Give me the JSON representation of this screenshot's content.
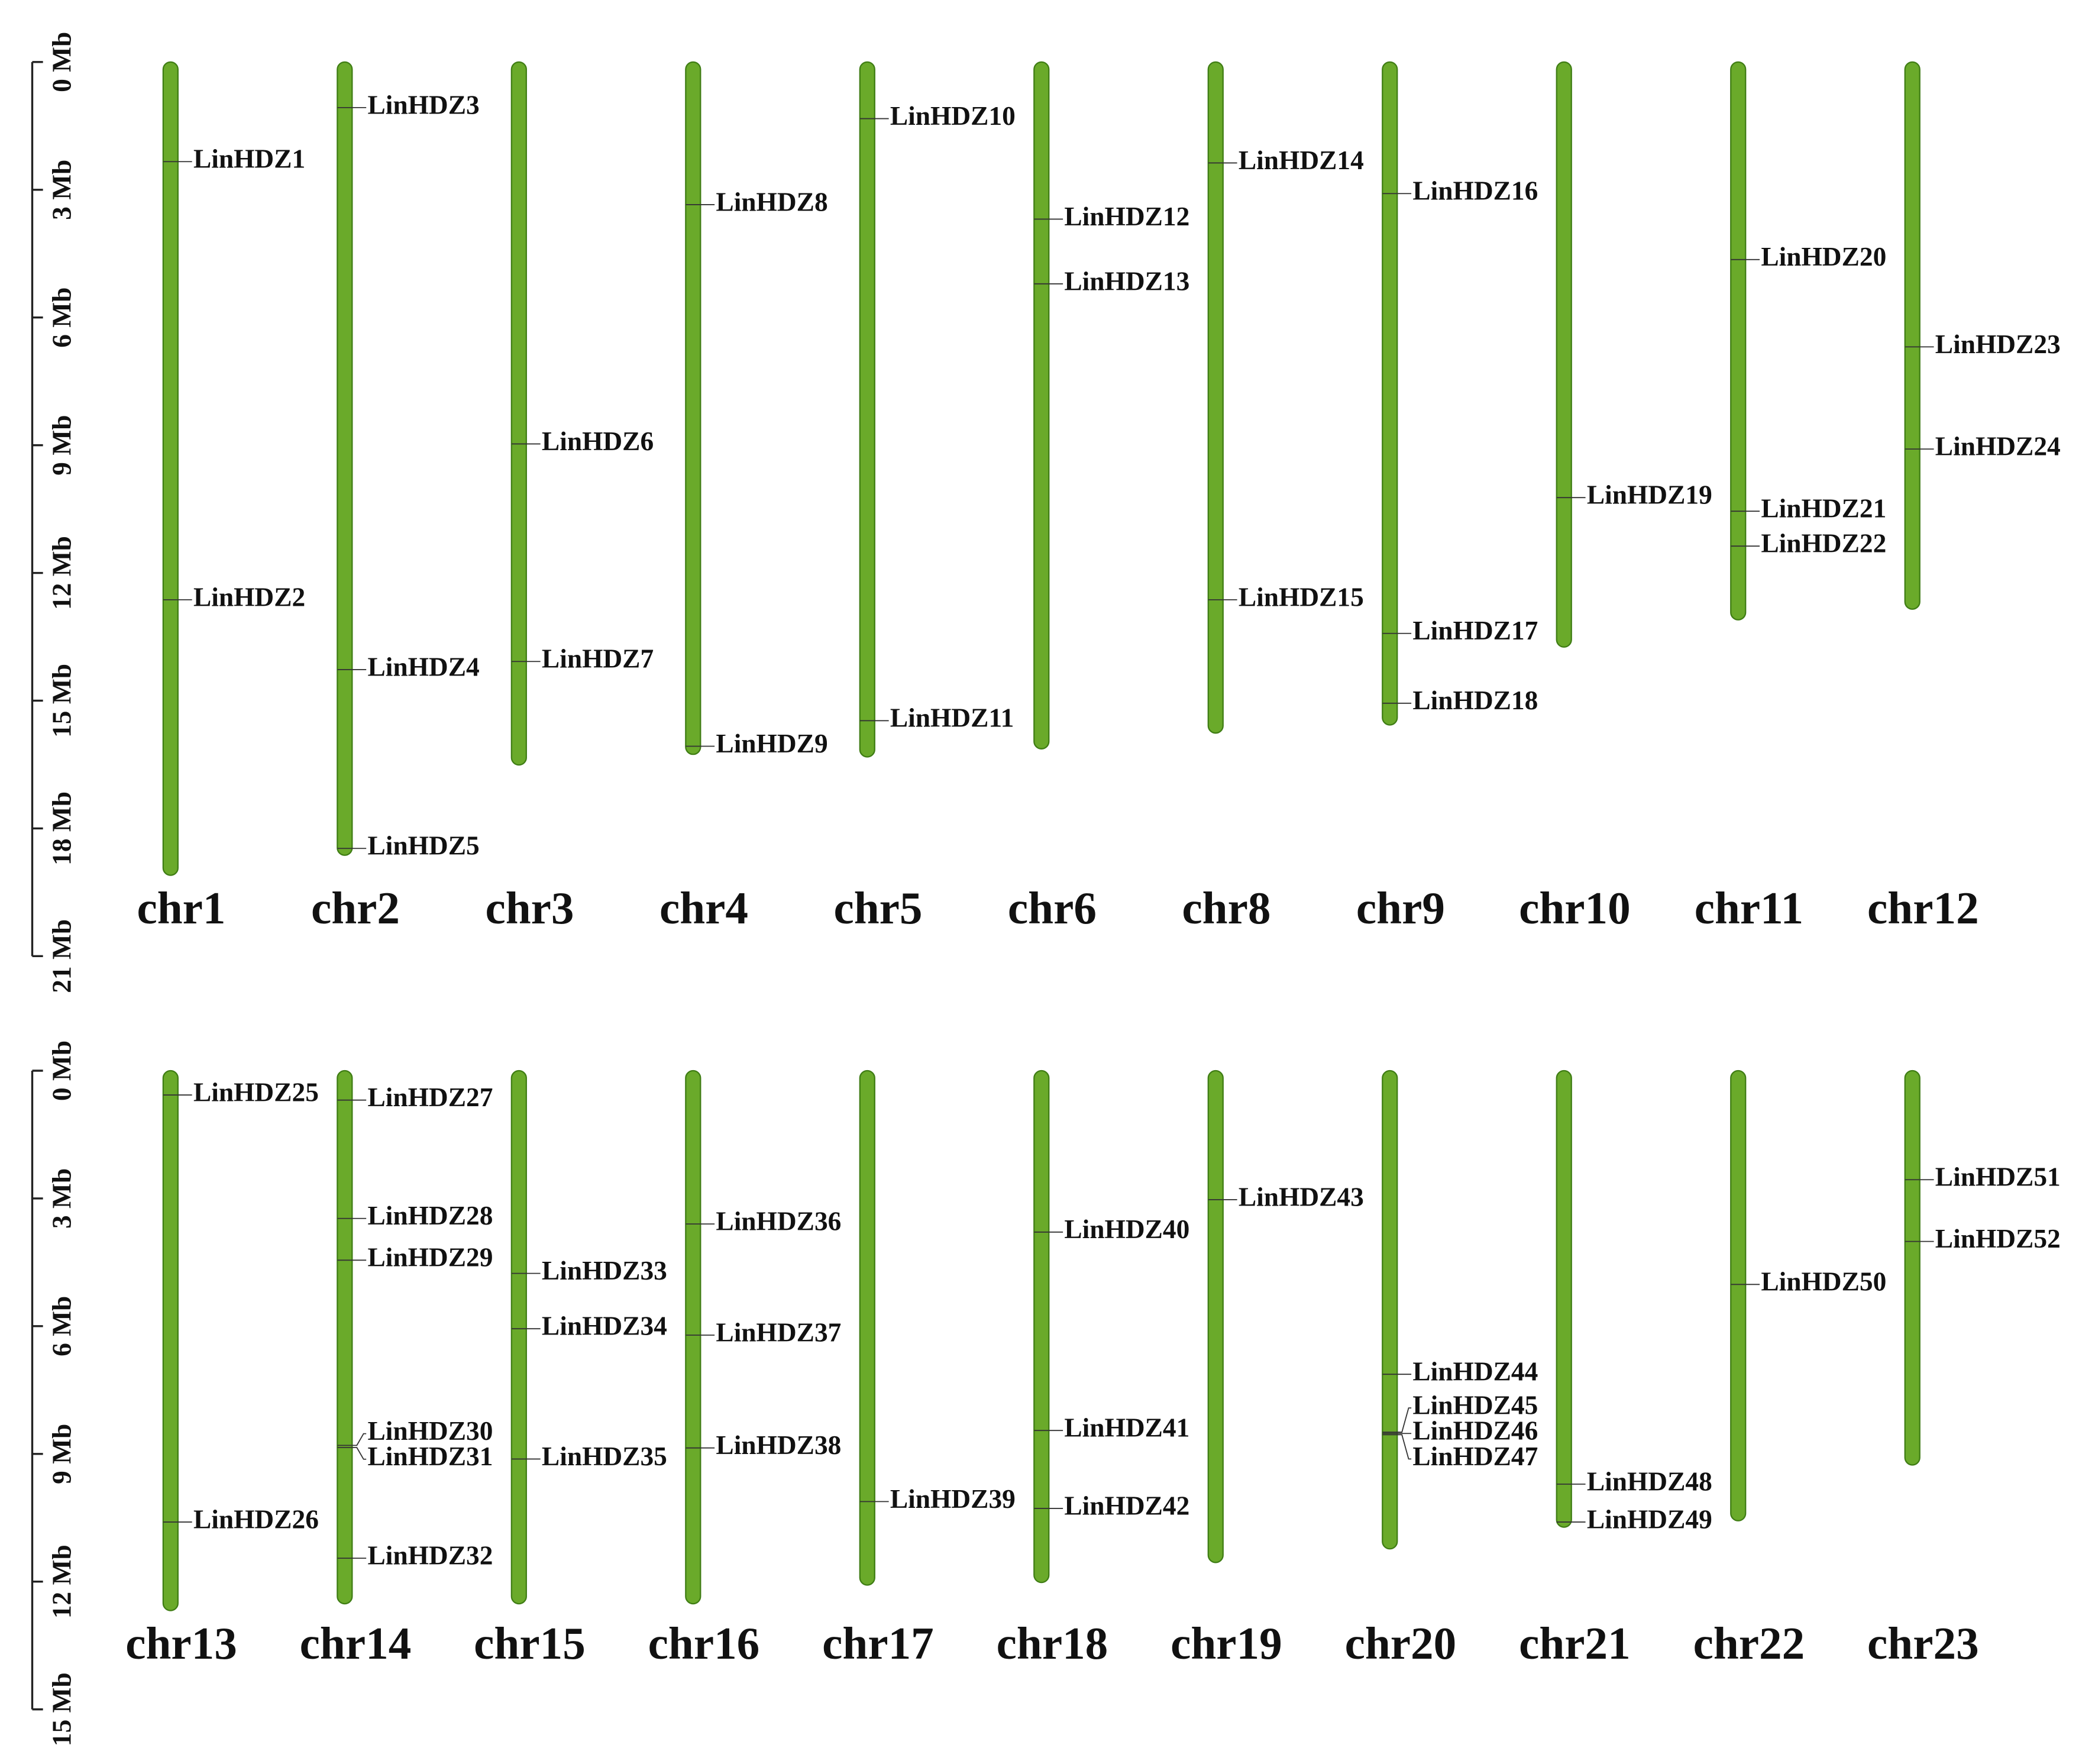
{
  "chart_data": [
    {
      "type": "ideogram",
      "color": "#6aaa2a",
      "ylim": [
        0,
        21
      ],
      "yticks": [
        {
          "value": 0,
          "label": "0 Mb"
        },
        {
          "value": 3,
          "label": "3 Mb"
        },
        {
          "value": 6,
          "label": "6 Mb"
        },
        {
          "value": 9,
          "label": "9 Mb"
        },
        {
          "value": 12,
          "label": "12 Mb"
        },
        {
          "value": 15,
          "label": "15 Mb"
        },
        {
          "value": 18,
          "label": "18 Mb"
        },
        {
          "value": 21,
          "label": "21 Mb"
        }
      ],
      "chromosomes": [
        {
          "name": "chr1",
          "length": 19.1,
          "genes": [
            {
              "name": "LinHDZ1",
              "position": 2.34
            },
            {
              "name": "LinHDZ2",
              "position": 12.63
            }
          ]
        },
        {
          "name": "chr2",
          "length": 18.63,
          "genes": [
            {
              "name": "LinHDZ3",
              "position": 1.07
            },
            {
              "name": "LinHDZ4",
              "position": 14.27
            },
            {
              "name": "LinHDZ5",
              "position": 18.47
            }
          ]
        },
        {
          "name": "chr3",
          "length": 16.51,
          "genes": [
            {
              "name": "LinHDZ6",
              "position": 8.97
            },
            {
              "name": "LinHDZ7",
              "position": 14.08
            }
          ]
        },
        {
          "name": "chr4",
          "length": 16.26,
          "genes": [
            {
              "name": "LinHDZ8",
              "position": 3.35
            },
            {
              "name": "LinHDZ9",
              "position": 16.07
            }
          ]
        },
        {
          "name": "chr5",
          "length": 16.32,
          "genes": [
            {
              "name": "LinHDZ10",
              "position": 1.33
            },
            {
              "name": "LinHDZ11",
              "position": 15.47
            }
          ]
        },
        {
          "name": "chr6",
          "length": 16.13,
          "genes": [
            {
              "name": "LinHDZ12",
              "position": 3.69
            },
            {
              "name": "LinHDZ13",
              "position": 5.21
            }
          ]
        },
        {
          "name": "chr8",
          "length": 15.76,
          "genes": [
            {
              "name": "LinHDZ14",
              "position": 2.37
            },
            {
              "name": "LinHDZ15",
              "position": 12.63
            }
          ]
        },
        {
          "name": "chr9",
          "length": 15.57,
          "genes": [
            {
              "name": "LinHDZ16",
              "position": 3.09
            },
            {
              "name": "LinHDZ17",
              "position": 13.42
            },
            {
              "name": "LinHDZ18",
              "position": 15.06
            }
          ]
        },
        {
          "name": "chr10",
          "length": 13.74,
          "genes": [
            {
              "name": "LinHDZ19",
              "position": 10.23
            }
          ]
        },
        {
          "name": "chr11",
          "length": 13.1,
          "genes": [
            {
              "name": "LinHDZ20",
              "position": 4.64
            },
            {
              "name": "LinHDZ21",
              "position": 10.55
            },
            {
              "name": "LinHDZ22",
              "position": 11.37
            }
          ]
        },
        {
          "name": "chr12",
          "length": 12.85,
          "genes": [
            {
              "name": "LinHDZ23",
              "position": 6.69
            },
            {
              "name": "LinHDZ24",
              "position": 9.09
            }
          ]
        }
      ]
    },
    {
      "type": "ideogram",
      "color": "#6aaa2a",
      "ylim": [
        0,
        15
      ],
      "yticks": [
        {
          "value": 0,
          "label": "0 Mb"
        },
        {
          "value": 3,
          "label": "3 Mb"
        },
        {
          "value": 6,
          "label": "6 Mb"
        },
        {
          "value": 9,
          "label": "9 Mb"
        },
        {
          "value": 12,
          "label": "12 Mb"
        },
        {
          "value": 15,
          "label": "15 Mb"
        }
      ],
      "chromosomes": [
        {
          "name": "chr13",
          "length": 12.68,
          "genes": [
            {
              "name": "LinHDZ25",
              "position": 0.57
            },
            {
              "name": "LinHDZ26",
              "position": 10.6
            }
          ]
        },
        {
          "name": "chr14",
          "length": 12.52,
          "genes": [
            {
              "name": "LinHDZ27",
              "position": 0.69
            },
            {
              "name": "LinHDZ28",
              "position": 3.47
            },
            {
              "name": "LinHDZ29",
              "position": 4.45
            },
            {
              "name": "LinHDZ30",
              "position": 8.8
            },
            {
              "name": "LinHDZ31",
              "position": 8.85
            },
            {
              "name": "LinHDZ32",
              "position": 11.45
            }
          ]
        },
        {
          "name": "chr15",
          "length": 12.52,
          "genes": [
            {
              "name": "LinHDZ33",
              "position": 4.76
            },
            {
              "name": "LinHDZ34",
              "position": 6.06
            },
            {
              "name": "LinHDZ35",
              "position": 9.12
            }
          ]
        },
        {
          "name": "chr16",
          "length": 12.52,
          "genes": [
            {
              "name": "LinHDZ36",
              "position": 3.6
            },
            {
              "name": "LinHDZ37",
              "position": 6.21
            },
            {
              "name": "LinHDZ38",
              "position": 8.86
            }
          ]
        },
        {
          "name": "chr17",
          "length": 12.08,
          "genes": [
            {
              "name": "LinHDZ39",
              "position": 10.12
            }
          ]
        },
        {
          "name": "chr18",
          "length": 12.02,
          "genes": [
            {
              "name": "LinHDZ40",
              "position": 3.79
            },
            {
              "name": "LinHDZ41",
              "position": 8.45
            },
            {
              "name": "LinHDZ42",
              "position": 10.28
            }
          ]
        },
        {
          "name": "chr19",
          "length": 11.55,
          "genes": [
            {
              "name": "LinHDZ43",
              "position": 3.03
            }
          ]
        },
        {
          "name": "chr20",
          "length": 11.23,
          "genes": [
            {
              "name": "LinHDZ44",
              "position": 7.13
            },
            {
              "name": "LinHDZ45",
              "position": 8.49
            },
            {
              "name": "LinHDZ46",
              "position": 8.52
            },
            {
              "name": "LinHDZ47",
              "position": 8.55
            }
          ]
        },
        {
          "name": "chr21",
          "length": 10.72,
          "genes": [
            {
              "name": "LinHDZ48",
              "position": 9.71
            },
            {
              "name": "LinHDZ49",
              "position": 10.6
            }
          ]
        },
        {
          "name": "chr22",
          "length": 10.57,
          "genes": [
            {
              "name": "LinHDZ50",
              "position": 5.02
            }
          ]
        },
        {
          "name": "chr23",
          "length": 9.26,
          "genes": [
            {
              "name": "LinHDZ51",
              "position": 2.56
            },
            {
              "name": "LinHDZ52",
              "position": 4.01
            }
          ]
        }
      ]
    }
  ]
}
